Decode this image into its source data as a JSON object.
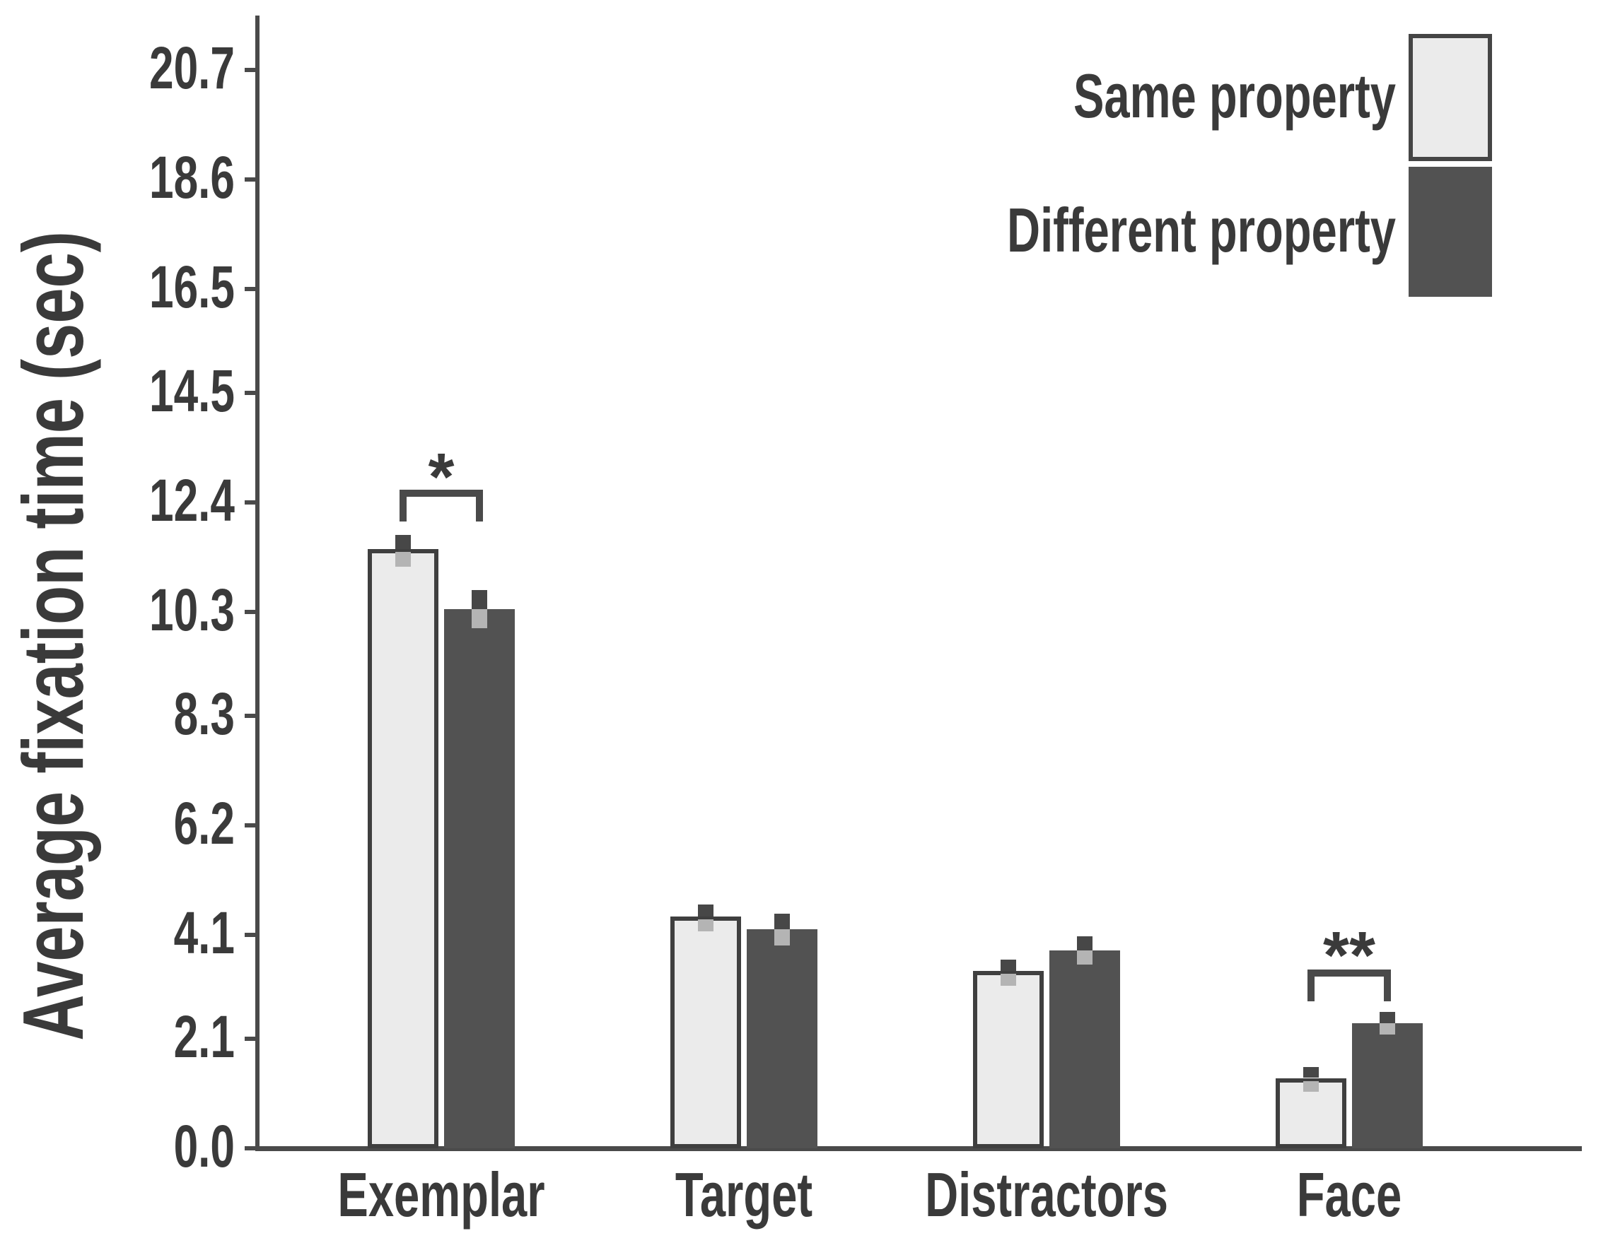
{
  "chart_data": {
    "type": "bar",
    "title": "",
    "categories": [
      "Exemplar",
      "Target",
      "Distractors",
      "Face"
    ],
    "series": [
      {
        "name": "Same property",
        "color": "#ebebeb",
        "border_color": "#3f3f3f",
        "values": [
          11.5,
          4.45,
          3.4,
          1.35
        ],
        "errors": [
          0.28,
          0.23,
          0.22,
          0.21
        ]
      },
      {
        "name": "Different property",
        "color": "#525252",
        "border_color": "#525252",
        "values": [
          10.35,
          4.2,
          3.8,
          2.4
        ],
        "errors": [
          0.37,
          0.31,
          0.27,
          0.22
        ]
      }
    ],
    "ylabel": "Average fixation time (sec)",
    "xlabel": "",
    "yticks": [
      0.0,
      2.1,
      4.1,
      6.2,
      8.3,
      10.3,
      12.4,
      14.5,
      16.5,
      18.6,
      20.7
    ],
    "ytick_labels": [
      "0.0",
      "2.1",
      "4.1",
      "6.2",
      "8.3",
      "10.3",
      "12.4",
      "14.5",
      "16.5",
      "18.6",
      "20.7"
    ],
    "ylim": [
      0,
      21.75
    ],
    "grid": false,
    "legend_position": "top-right",
    "error_bar_upper_color": "#474747",
    "error_bar_lower_color": "#b4b4b4",
    "significance": [
      {
        "category": "Exemplar",
        "label": "*"
      },
      {
        "category": "Face",
        "label": "**"
      }
    ]
  }
}
